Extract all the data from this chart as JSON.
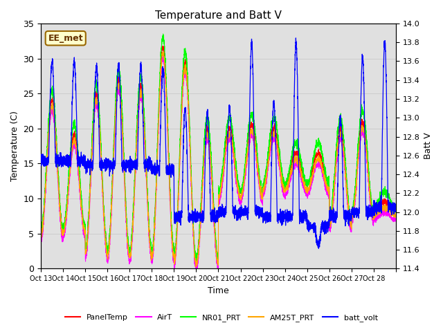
{
  "title": "Temperature and Batt V",
  "xlabel": "Time",
  "ylabel_left": "Temperature (C)",
  "ylabel_right": "Batt V",
  "annotation": "EE_met",
  "ylim_left": [
    0,
    35
  ],
  "ylim_right": [
    11.4,
    14.0
  ],
  "xtick_labels": [
    "Oct 13",
    "Oct 14",
    "Oct 15",
    "Oct 16",
    "Oct 17",
    "Oct 18",
    "Oct 19",
    "Oct 20",
    "Oct 21",
    "Oct 22",
    "Oct 23",
    "Oct 24",
    "Oct 25",
    "Oct 26",
    "Oct 27",
    "Oct 28"
  ],
  "grid_color": "#cccccc",
  "bg_color": "#e0e0e0",
  "colors": {
    "PanelTemp": "#ff0000",
    "AirT": "#ff00ff",
    "NR01_PRT": "#00ff00",
    "AM25T_PRT": "#ffa500",
    "batt_volt": "#0000ff"
  },
  "legend_entries": [
    "PanelTemp",
    "AirT",
    "NR01_PRT",
    "AM25T_PRT",
    "batt_volt"
  ],
  "batt_ticks": [
    11.4,
    11.6,
    11.8,
    12.0,
    12.2,
    12.4,
    12.6,
    12.8,
    13.0,
    13.2,
    13.4,
    13.6,
    13.8,
    14.0
  ],
  "temp_ticks": [
    0,
    5,
    10,
    15,
    20,
    25,
    30,
    35
  ],
  "n_days": 16,
  "day_min_temps": [
    5.5,
    6.0,
    3.0,
    2.5,
    2.5,
    2.5,
    1.5,
    1.5,
    11.0,
    11.0,
    12.0,
    12.0,
    12.0,
    7.0,
    8.0,
    8.5
  ],
  "day_max_temps": [
    24.0,
    19.0,
    25.0,
    27.0,
    26.0,
    31.5,
    29.5,
    20.0,
    20.0,
    20.5,
    20.0,
    16.5,
    16.5,
    20.0,
    21.0,
    9.5
  ],
  "batt_night": [
    12.55,
    12.55,
    12.5,
    12.5,
    12.5,
    12.45,
    11.95,
    11.95,
    12.0,
    12.0,
    11.95,
    11.95,
    11.85,
    11.95,
    12.0,
    12.05
  ],
  "batt_day_spike": [
    13.6,
    13.6,
    13.55,
    13.55,
    13.55,
    13.5,
    13.1,
    13.05,
    13.1,
    13.8,
    13.15,
    13.8,
    11.65,
    13.0,
    13.65,
    13.8
  ]
}
